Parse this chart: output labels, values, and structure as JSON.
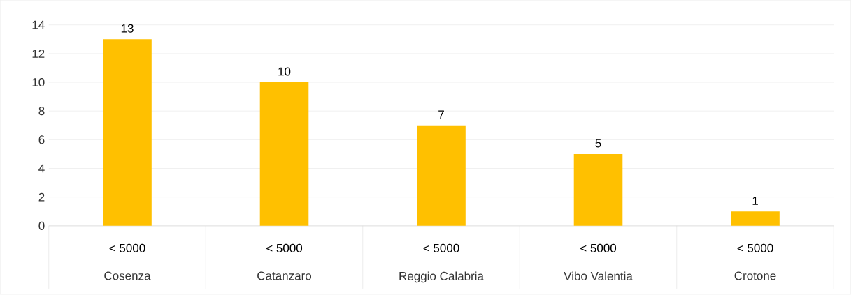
{
  "chart_data": {
    "type": "bar",
    "categories": [
      "Cosenza",
      "Catanzaro",
      "Reggio Calabria",
      "Vibo Valentia",
      "Crotone"
    ],
    "values": [
      13,
      10,
      7,
      5,
      1
    ],
    "color": "#ffc000",
    "ylim": [
      0,
      14
    ],
    "yticks": [
      0,
      2,
      4,
      6,
      8,
      10,
      12,
      14
    ],
    "grid": "y",
    "data_labels": true,
    "annotations": [
      "< 5000",
      "< 5000",
      "< 5000",
      "< 5000",
      "< 5000"
    ]
  }
}
